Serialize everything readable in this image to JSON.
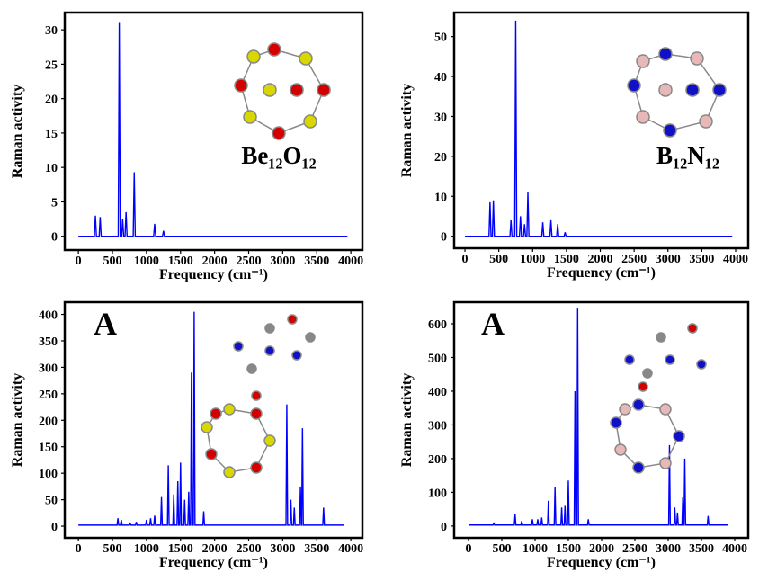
{
  "chart_data": [
    {
      "type": "line",
      "label": "Be₁₂O₁₂",
      "xlabel": "Frequency (cm⁻¹)",
      "ylabel": "Raman activity",
      "color": "#0000ff",
      "x": [
        0,
        235,
        250,
        265,
        305,
        320,
        335,
        585,
        600,
        615,
        635,
        650,
        665,
        685,
        700,
        715,
        805,
        820,
        835,
        1105,
        1120,
        1135,
        1235,
        1250,
        1265,
        3950
      ],
      "values": [
        0,
        0,
        3,
        0,
        0,
        2.8,
        0,
        0,
        31,
        0,
        0,
        2.5,
        0,
        0,
        3.5,
        0,
        0,
        9.3,
        0,
        0,
        1.8,
        0,
        0,
        0.8,
        0,
        0
      ],
      "xlim": [
        -200,
        4170
      ],
      "ylim": [
        -2,
        32.5
      ],
      "xticks": [
        0,
        500,
        1000,
        1500,
        2000,
        2500,
        3000,
        3500,
        4000
      ],
      "yticks": [
        0,
        5,
        10,
        15,
        20,
        25,
        30
      ]
    },
    {
      "type": "line",
      "label": "B₁₂N₁₂",
      "xlabel": "Frequency (cm⁻¹)",
      "ylabel": "Raman activity",
      "color": "#0000ff",
      "x": [
        0,
        355,
        370,
        385,
        405,
        420,
        435,
        665,
        680,
        695,
        735,
        750,
        765,
        805,
        820,
        835,
        865,
        880,
        895,
        915,
        930,
        945,
        1135,
        1150,
        1165,
        1255,
        1270,
        1285,
        1355,
        1370,
        1385,
        1465,
        1480,
        1495,
        3950
      ],
      "values": [
        0,
        0,
        8.5,
        0,
        0,
        9,
        0,
        0,
        4,
        0,
        0,
        54,
        0,
        0,
        5,
        0,
        0,
        3,
        0,
        0,
        11,
        0,
        0,
        3.5,
        0,
        0,
        4,
        0,
        0,
        3,
        0,
        0,
        1,
        0,
        0
      ],
      "xlim": [
        -160,
        4186
      ],
      "ylim": [
        -3,
        56
      ],
      "xticks": [
        0,
        500,
        1000,
        1500,
        2000,
        2500,
        3000,
        3500,
        4000
      ],
      "yticks": [
        0,
        10,
        20,
        30,
        40,
        50
      ]
    },
    {
      "type": "line",
      "label": "A",
      "xlabel": "Frequency (cm⁻¹)",
      "ylabel": "Raman activity",
      "color": "#0000ff",
      "x": [
        0,
        568,
        580,
        592,
        618,
        630,
        642,
        748,
        760,
        772,
        838,
        850,
        862,
        988,
        1000,
        1012,
        1048,
        1060,
        1072,
        1108,
        1120,
        1132,
        1208,
        1220,
        1232,
        1308,
        1320,
        1332,
        1388,
        1400,
        1412,
        1448,
        1460,
        1472,
        1488,
        1500,
        1512,
        1548,
        1560,
        1572,
        1608,
        1620,
        1632,
        1648,
        1660,
        1672,
        1688,
        1700,
        1712,
        1828,
        1840,
        1852,
        3048,
        3060,
        3072,
        3108,
        3120,
        3132,
        3158,
        3170,
        3182,
        3248,
        3260,
        3272,
        3278,
        3290,
        3302,
        3588,
        3600,
        3612,
        3900
      ],
      "values": [
        2,
        2,
        15,
        2,
        2,
        12,
        2,
        2,
        5,
        2,
        2,
        8,
        2,
        2,
        12,
        2,
        2,
        15,
        2,
        2,
        20,
        2,
        2,
        55,
        2,
        2,
        115,
        2,
        2,
        60,
        2,
        2,
        85,
        2,
        2,
        120,
        2,
        2,
        50,
        2,
        2,
        65,
        2,
        2,
        290,
        2,
        2,
        405,
        2,
        2,
        28,
        2,
        2,
        230,
        2,
        2,
        50,
        2,
        2,
        35,
        2,
        2,
        75,
        2,
        2,
        185,
        2,
        2,
        35,
        2,
        2
      ],
      "xlim": [
        -200,
        4170
      ],
      "ylim": [
        -22,
        423
      ],
      "xticks": [
        0,
        500,
        1000,
        1500,
        2000,
        2500,
        3000,
        3500,
        4000
      ],
      "yticks": [
        0,
        50,
        100,
        150,
        200,
        250,
        300,
        350,
        400
      ]
    },
    {
      "type": "line",
      "label": "A",
      "xlabel": "Frequency (cm⁻¹)",
      "ylabel": "Raman activity",
      "color": "#0000ff",
      "x": [
        0,
        368,
        380,
        392,
        688,
        700,
        712,
        788,
        800,
        812,
        948,
        960,
        972,
        1028,
        1040,
        1052,
        1088,
        1100,
        1112,
        1188,
        1200,
        1212,
        1288,
        1300,
        1312,
        1388,
        1400,
        1412,
        1438,
        1450,
        1462,
        1488,
        1500,
        1512,
        1588,
        1600,
        1612,
        1628,
        1640,
        1652,
        1788,
        1800,
        1812,
        3008,
        3020,
        3032,
        3088,
        3100,
        3112,
        3128,
        3140,
        3152,
        3208,
        3220,
        3232,
        3238,
        3250,
        3262,
        3588,
        3600,
        3612,
        3900
      ],
      "values": [
        3,
        3,
        8,
        3,
        3,
        35,
        3,
        3,
        15,
        3,
        3,
        20,
        3,
        3,
        20,
        3,
        3,
        25,
        3,
        3,
        75,
        3,
        3,
        115,
        3,
        3,
        55,
        3,
        3,
        60,
        3,
        3,
        135,
        3,
        3,
        400,
        3,
        3,
        645,
        3,
        3,
        20,
        3,
        3,
        240,
        3,
        3,
        55,
        3,
        3,
        40,
        3,
        3,
        85,
        3,
        3,
        200,
        3,
        3,
        30,
        3,
        3
      ],
      "xlim": [
        -216,
        4203
      ],
      "ylim": [
        -35,
        664
      ],
      "xticks": [
        0,
        500,
        1000,
        1500,
        2000,
        2500,
        3000,
        3500,
        4000
      ],
      "yticks": [
        0,
        100,
        200,
        300,
        400,
        500,
        600
      ]
    }
  ]
}
